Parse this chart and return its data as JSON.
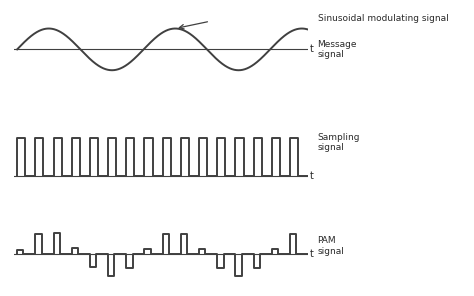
{
  "background_color": "#ffffff",
  "line_color": "#404040",
  "text_color": "#2a2a2a",
  "fig_width": 4.74,
  "fig_height": 2.96,
  "dpi": 100,
  "message_label": "Message\nsignal",
  "sampling_label": "Sampling\nsignal",
  "pam_label": "PAM\nsignal",
  "sinusoidal_label": "Sinusoidal modulating signal",
  "t_label": "t",
  "sin_freq": 2.3,
  "n_sampling_pulses": 16,
  "sampling_duty": 0.45,
  "pam_n_pulses": 16,
  "pam_duty": 0.35,
  "pam_freq": 2.3
}
